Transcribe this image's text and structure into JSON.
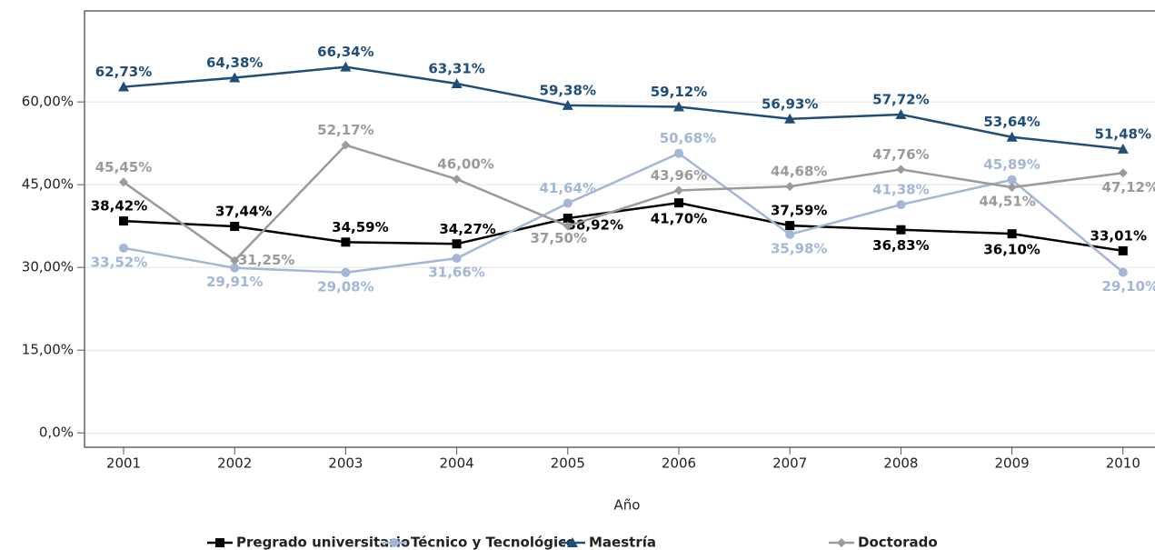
{
  "chart_data": {
    "type": "line",
    "x_label": "Año",
    "categories": [
      "2001",
      "2002",
      "2003",
      "2004",
      "2005",
      "2006",
      "2007",
      "2008",
      "2009",
      "2010"
    ],
    "ylim": [
      -2.6,
      76.5
    ],
    "yticks": [
      {
        "value": 0,
        "label": "0,0%"
      },
      {
        "value": 15,
        "label": "15,00%"
      },
      {
        "value": 30,
        "label": "30,00%"
      },
      {
        "value": 45,
        "label": "45,00%"
      },
      {
        "value": 60,
        "label": "60,00%"
      }
    ],
    "grid": true,
    "series": [
      {
        "name": "Pregrado universitario",
        "color": "#000000",
        "marker": "square",
        "values": [
          38.42,
          37.44,
          34.59,
          34.27,
          38.92,
          41.7,
          37.59,
          36.83,
          36.1,
          33.01
        ],
        "value_labels": [
          "38,42%",
          "37,44%",
          "34,59%",
          "34,27%",
          "38,92%",
          "41,70%",
          "37,59%",
          "36,83%",
          "36,10%",
          "33,01%"
        ]
      },
      {
        "name": "Técnico y Tecnológico",
        "color": "#a3b6d6",
        "marker": "circle",
        "values": [
          33.52,
          29.91,
          29.08,
          31.66,
          41.64,
          50.68,
          35.98,
          41.38,
          45.89,
          29.1
        ],
        "value_labels": [
          "33,52%",
          "29,91%",
          "29,08%",
          "31,66%",
          "41,64%",
          "50,68%",
          "35,98%",
          "41,38%",
          "45,89%",
          "29,10%"
        ]
      },
      {
        "name": "Maestría",
        "color": "#1f4e79",
        "marker": "triangle",
        "values": [
          62.73,
          64.38,
          66.34,
          63.31,
          59.38,
          59.12,
          56.93,
          57.72,
          53.64,
          51.48
        ],
        "value_labels": [
          "62,73%",
          "64,38%",
          "66,34%",
          "63,31%",
          "59,38%",
          "59,12%",
          "56,93%",
          "57,72%",
          "53,64%",
          "51,48%"
        ]
      },
      {
        "name": "Doctorado",
        "color": "#9a9a9a",
        "marker": "diamond",
        "values": [
          45.45,
          31.25,
          52.17,
          46.0,
          37.5,
          43.96,
          44.68,
          47.76,
          44.51,
          47.12
        ],
        "value_labels": [
          "45,45%",
          "31,25%",
          "52,17%",
          "46,00%",
          "37,50%",
          "43,96%",
          "44,68%",
          "47,76%",
          "44,51%",
          "47,12%"
        ]
      }
    ]
  }
}
